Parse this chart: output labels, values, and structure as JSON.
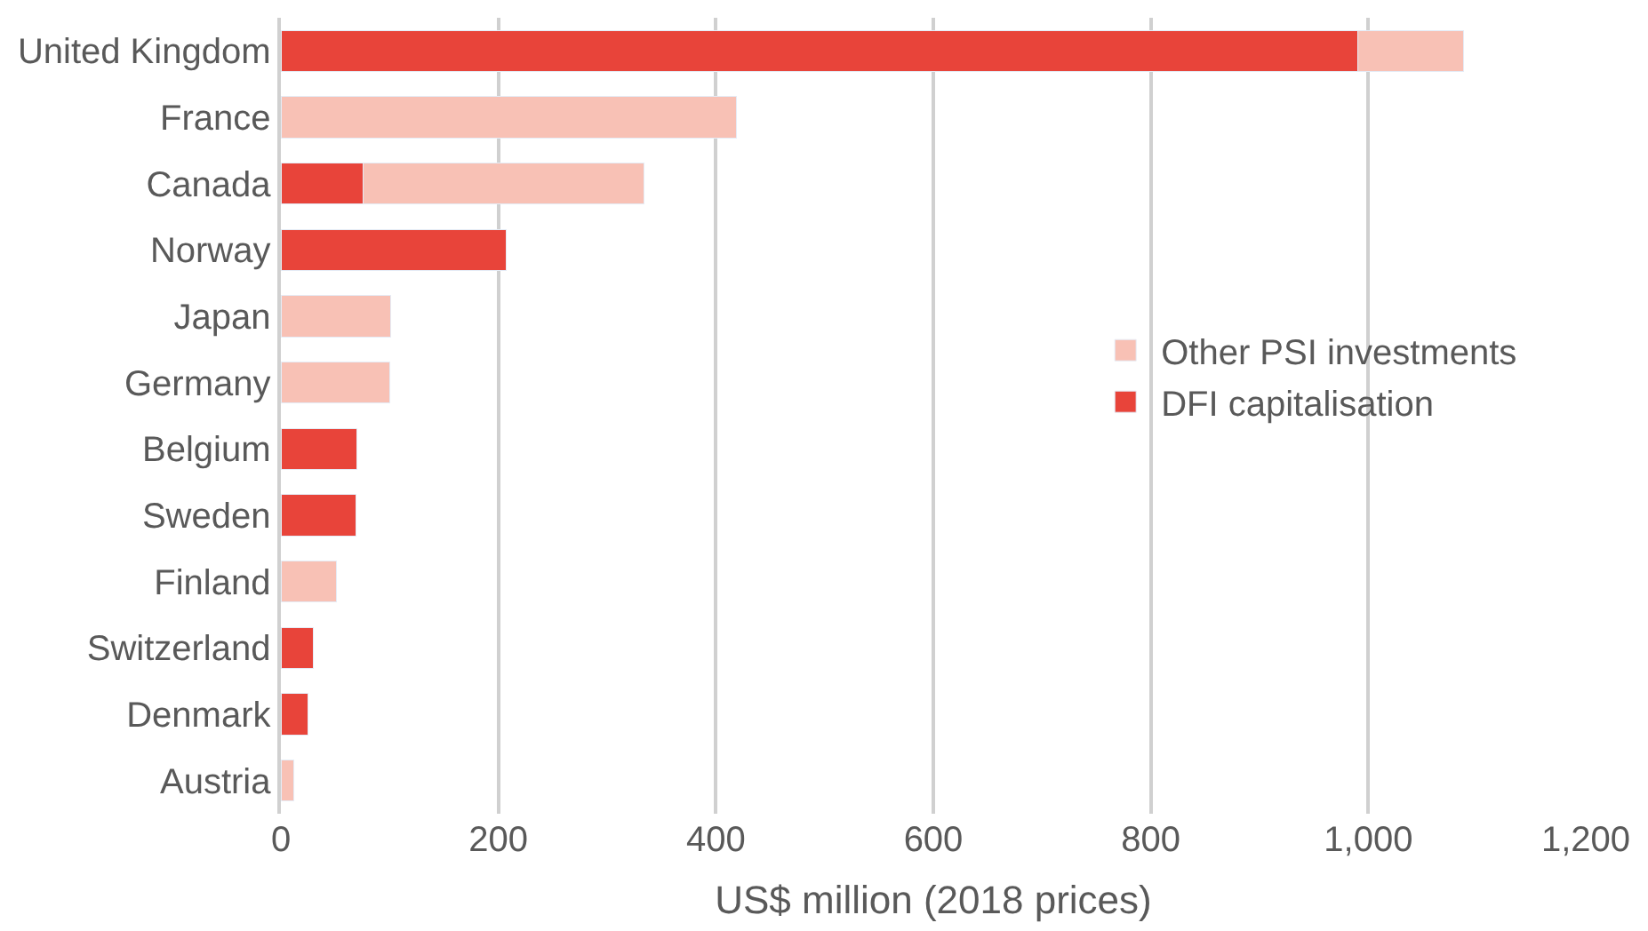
{
  "chart_data": {
    "type": "bar",
    "orientation": "horizontal",
    "stacked": true,
    "xlabel": "US$ million (2018 prices)",
    "categories": [
      "United Kingdom",
      "France",
      "Canada",
      "Norway",
      "Japan",
      "Germany",
      "Belgium",
      "Sweden",
      "Finland",
      "Switzerland",
      "Denmark",
      "Austria"
    ],
    "series": [
      {
        "name": "DFI capitalisation",
        "color": "#e8443a",
        "values": [
          990,
          null,
          76,
          207,
          null,
          null,
          70,
          69,
          null,
          30,
          25,
          null
        ]
      },
      {
        "name": "Other PSI investments",
        "color": "#f8c1b5",
        "values": [
          98,
          419,
          258,
          null,
          101,
          100,
          null,
          null,
          51,
          null,
          null,
          12
        ]
      }
    ],
    "xlim": [
      0,
      1200
    ],
    "xticks": [
      0,
      200,
      400,
      600,
      800,
      {
        "value": 1000,
        "label": "1,000"
      },
      {
        "value": 1200,
        "label": "1,200"
      }
    ],
    "grid": "x",
    "legend": "right"
  }
}
